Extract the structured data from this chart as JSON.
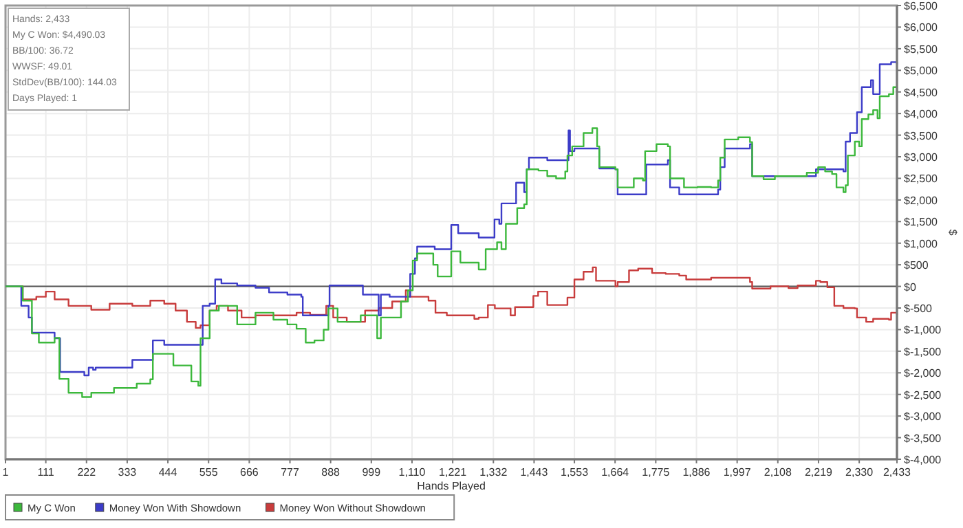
{
  "chart_data": {
    "type": "step",
    "xlabel": "Hands Played",
    "ylabel": "$",
    "annotations": [
      "Hands: 2,433",
      "My C Won: $4,490.03",
      "BB/100: 36.72",
      "WWSF: 49.01",
      "StdDev(BB/100): 144.03",
      "Days Played: 1"
    ],
    "xlim": [
      1,
      2433
    ],
    "ylim": [
      -4000,
      6500
    ],
    "xticks": [
      1,
      111,
      222,
      333,
      444,
      555,
      666,
      777,
      888,
      999,
      {
        "value": 1110,
        "label": "1,110"
      },
      {
        "value": 1221,
        "label": "1,221"
      },
      {
        "value": 1332,
        "label": "1,332"
      },
      {
        "value": 1443,
        "label": "1,443"
      },
      {
        "value": 1553,
        "label": "1,553"
      },
      {
        "value": 1664,
        "label": "1,664"
      },
      {
        "value": 1775,
        "label": "1,775"
      },
      {
        "value": 1886,
        "label": "1,886"
      },
      {
        "value": 1997,
        "label": "1,997"
      },
      {
        "value": 2108,
        "label": "2,108"
      },
      {
        "value": 2219,
        "label": "2,219"
      },
      {
        "value": 2330,
        "label": "2,330"
      },
      {
        "value": 2433,
        "label": "2,433"
      }
    ],
    "yticks": [
      {
        "value": -4000,
        "label": "$-4,000"
      },
      {
        "value": -3500,
        "label": "$-3,500"
      },
      {
        "value": -3000,
        "label": "$-3,000"
      },
      {
        "value": -2500,
        "label": "$-2,500"
      },
      {
        "value": -2000,
        "label": "$-2,000"
      },
      {
        "value": -1500,
        "label": "$-1,500"
      },
      {
        "value": -1000,
        "label": "$-1,000"
      },
      {
        "value": -500,
        "label": "$-500"
      },
      {
        "value": 0,
        "label": "$0"
      },
      {
        "value": 500,
        "label": "$500"
      },
      {
        "value": 1000,
        "label": "$1,000"
      },
      {
        "value": 1500,
        "label": "$1,500"
      },
      {
        "value": 2000,
        "label": "$2,000"
      },
      {
        "value": 2500,
        "label": "$2,500"
      },
      {
        "value": 3000,
        "label": "$3,000"
      },
      {
        "value": 3500,
        "label": "$3,500"
      },
      {
        "value": 4000,
        "label": "$4,000"
      },
      {
        "value": 4500,
        "label": "$4,500"
      },
      {
        "value": 5000,
        "label": "$5,000"
      },
      {
        "value": 5500,
        "label": "$5,500"
      },
      {
        "value": 6000,
        "label": "$6,000"
      },
      {
        "value": 6500,
        "label": "$6,500"
      }
    ],
    "grid": true,
    "legend": "bottom left",
    "ref_lines": [
      {
        "axis": "y",
        "value": 0,
        "label": null,
        "color": "#555555"
      }
    ],
    "series": [
      {
        "name": "My C Won",
        "color": "#3cb83c",
        "x": [
          1,
          48,
          73,
          92,
          135,
          148,
          173,
          210,
          235,
          297,
          359,
          396,
          403,
          459,
          508,
          527,
          533,
          558,
          583,
          633,
          683,
          732,
          770,
          795,
          820,
          844,
          869,
          882,
          907,
          970,
          1007,
          1015,
          1025,
          1080,
          1099,
          1112,
          1124,
          1168,
          1180,
          1205,
          1217,
          1242,
          1292,
          1311,
          1342,
          1354,
          1366,
          1391,
          1397,
          1416,
          1423,
          1455,
          1479,
          1503,
          1528,
          1534,
          1547,
          1578,
          1602,
          1615,
          1621,
          1665,
          1671,
          1702,
          1715,
          1740,
          1746,
          1777,
          1808,
          1814,
          1852,
          1889,
          1926,
          1945,
          1951,
          1963,
          2000,
          2032,
          2038,
          2069,
          2100,
          2150,
          2187,
          2218,
          2237,
          2256,
          2268,
          2287,
          2293,
          2299,
          2312,
          2318,
          2330,
          2337,
          2355,
          2368,
          2380,
          2386,
          2411,
          2423,
          2433
        ],
        "values": [
          0,
          -330,
          -1090,
          -1300,
          -1190,
          -2140,
          -2460,
          -2560,
          -2460,
          -2350,
          -2250,
          -2150,
          -1560,
          -1830,
          -2200,
          -2300,
          -1200,
          -560,
          -450,
          -880,
          -610,
          -770,
          -880,
          -980,
          -1300,
          -1250,
          -1000,
          -510,
          -820,
          -670,
          -670,
          -1200,
          -720,
          -350,
          -90,
          600,
          760,
          500,
          230,
          230,
          810,
          550,
          390,
          860,
          1020,
          860,
          1450,
          1450,
          1810,
          1900,
          2710,
          2680,
          2550,
          2500,
          2660,
          3030,
          3240,
          3550,
          3660,
          3240,
          2760,
          2710,
          2290,
          2290,
          2500,
          2450,
          3130,
          3290,
          3240,
          2500,
          2290,
          2300,
          2290,
          2450,
          2980,
          3400,
          3450,
          3340,
          2550,
          2480,
          2550,
          2550,
          2630,
          2760,
          2660,
          2600,
          2290,
          2180,
          2340,
          3030,
          3030,
          3350,
          3240,
          3870,
          3980,
          4080,
          3890,
          4400,
          4450,
          4610,
          4490
        ]
      },
      {
        "name": "Money Won With Showdown",
        "color": "#3c3cc8",
        "x": [
          1,
          44,
          64,
          73,
          92,
          135,
          145,
          150,
          216,
          228,
          240,
          247,
          347,
          352,
          396,
          403,
          434,
          527,
          539,
          558,
          573,
          590,
          633,
          683,
          720,
          770,
          808,
          812,
          869,
          882,
          885,
          970,
          976,
          1015,
          1019,
          1025,
          1049,
          1099,
          1105,
          1118,
          1124,
          1172,
          1210,
          1217,
          1236,
          1292,
          1329,
          1335,
          1348,
          1354,
          1391,
          1394,
          1416,
          1423,
          1429,
          1479,
          1534,
          1537,
          1541,
          1553,
          1609,
          1621,
          1665,
          1671,
          1746,
          1749,
          1777,
          1808,
          1814,
          1839,
          1926,
          1945,
          1951,
          1963,
          2032,
          2038,
          2150,
          2212,
          2287,
          2293,
          2305,
          2318,
          2324,
          2337,
          2362,
          2368,
          2380,
          2386,
          2417,
          2433
        ],
        "values": [
          0,
          -450,
          -720,
          -1070,
          -1070,
          -1200,
          -1200,
          -1980,
          -2060,
          -1880,
          -1930,
          -1880,
          -1700,
          -1700,
          -1700,
          -1250,
          -1350,
          -1350,
          -450,
          -400,
          160,
          70,
          20,
          -30,
          -140,
          -190,
          -240,
          -670,
          -670,
          -450,
          20,
          20,
          -190,
          -190,
          -670,
          -190,
          -240,
          -240,
          290,
          650,
          920,
          860,
          860,
          1420,
          1230,
          1130,
          1130,
          1550,
          1450,
          1920,
          1920,
          2400,
          2180,
          2710,
          2980,
          2920,
          2920,
          3610,
          3130,
          3190,
          3190,
          2730,
          2710,
          2130,
          2130,
          2820,
          2820,
          2920,
          2290,
          2130,
          2130,
          2240,
          2760,
          3190,
          3290,
          2550,
          2550,
          2710,
          2660,
          3350,
          3550,
          3550,
          4030,
          4610,
          4770,
          4450,
          4450,
          5140,
          5190,
          5140
        ]
      },
      {
        "name": "Money Won Without Showdown",
        "color": "#c83c3c",
        "x": [
          1,
          48,
          85,
          111,
          135,
          173,
          235,
          285,
          347,
          396,
          434,
          465,
          496,
          520,
          533,
          558,
          577,
          608,
          645,
          683,
          732,
          795,
          832,
          876,
          895,
          932,
          982,
          1019,
          1056,
          1093,
          1105,
          1155,
          1174,
          1205,
          1280,
          1292,
          1317,
          1336,
          1379,
          1391,
          1441,
          1454,
          1479,
          1534,
          1553,
          1578,
          1603,
          1612,
          1665,
          1671,
          1702,
          1727,
          1765,
          1802,
          1839,
          1858,
          1889,
          1926,
          1988,
          2032,
          2038,
          2088,
          2137,
          2162,
          2212,
          2224,
          2243,
          2262,
          2287,
          2318,
          2324,
          2349,
          2368,
          2411,
          2417,
          2433
        ],
        "values": [
          0,
          -300,
          -240,
          -120,
          -300,
          -450,
          -540,
          -400,
          -450,
          -330,
          -400,
          -560,
          -820,
          -960,
          -900,
          -560,
          -450,
          -560,
          -720,
          -670,
          -670,
          -610,
          -660,
          -450,
          -720,
          -820,
          -560,
          -500,
          -350,
          -90,
          -240,
          -330,
          -610,
          -670,
          -750,
          -720,
          -430,
          -510,
          -670,
          -480,
          -220,
          -120,
          -430,
          -260,
          160,
          340,
          440,
          130,
          0,
          100,
          370,
          410,
          310,
          290,
          250,
          160,
          160,
          200,
          200,
          100,
          -50,
          0,
          -40,
          20,
          130,
          100,
          -20,
          -450,
          -500,
          -510,
          -720,
          -820,
          -750,
          -770,
          -610,
          -660
        ]
      }
    ]
  }
}
